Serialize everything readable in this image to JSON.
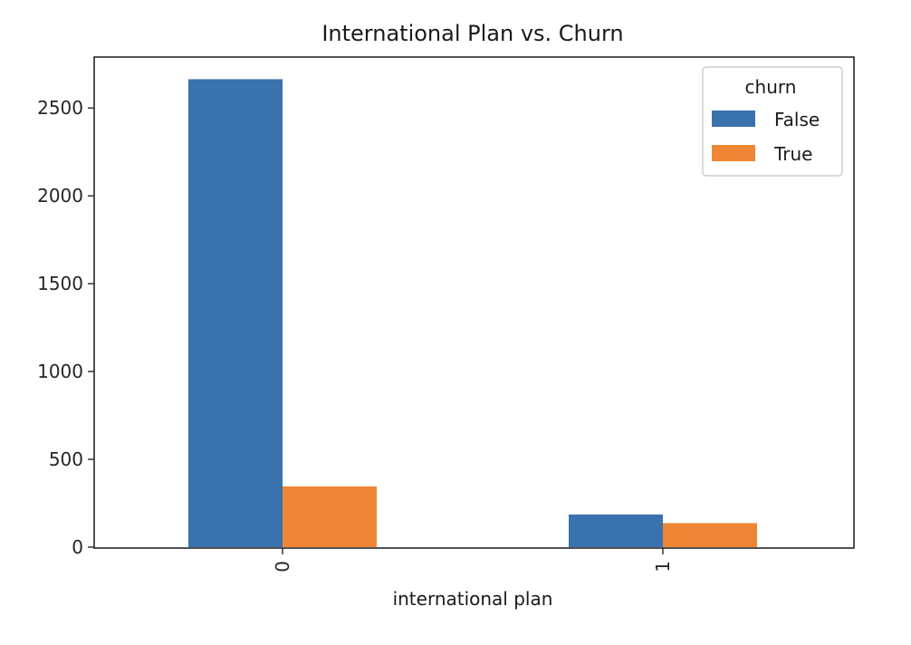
{
  "chart_data": {
    "type": "bar",
    "title": "International Plan vs. Churn",
    "xlabel": "international plan",
    "ylabel": "",
    "categories": [
      "0",
      "1"
    ],
    "series": [
      {
        "name": "False",
        "values": [
          2664,
          186
        ],
        "color": "#3a72ad"
      },
      {
        "name": "True",
        "values": [
          346,
          137
        ],
        "color": "#ef8636"
      }
    ],
    "ylim": [
      0,
      2790
    ],
    "yticks": [
      0,
      500,
      1000,
      1500,
      2000,
      2500
    ],
    "legend": {
      "title": "churn",
      "placement": "top-right"
    },
    "grid": false,
    "x_tick_rotation": "vertical"
  }
}
